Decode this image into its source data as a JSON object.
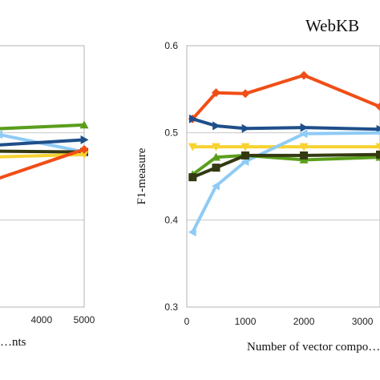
{
  "chart_data": [
    {
      "type": "line",
      "title": "",
      "xlabel": "…nts",
      "ylabel": "",
      "xticks": [
        "4000",
        "5000"
      ],
      "xlim": [
        2650,
        5000
      ],
      "ylim": [
        0.3,
        0.6
      ],
      "grid": true,
      "series": [
        {
          "color": "#5a9e1c",
          "marker": "triangle-up",
          "x": [
            2650,
            5000
          ],
          "y": [
            0.504,
            0.509
          ]
        },
        {
          "color": "#8ecbf5",
          "marker": "triangle-left",
          "x": [
            2650,
            3000,
            5000
          ],
          "y": [
            0.497,
            0.498,
            0.478
          ]
        },
        {
          "color": "#1f4f8a",
          "marker": "triangle-right",
          "x": [
            2650,
            5000
          ],
          "y": [
            0.485,
            0.492
          ]
        },
        {
          "color": "#333a12",
          "marker": "square",
          "x": [
            2650,
            5000
          ],
          "y": [
            0.479,
            0.478
          ]
        },
        {
          "color": "#f7d331",
          "marker": "triangle-down",
          "x": [
            2650,
            5000
          ],
          "y": [
            0.472,
            0.475
          ]
        },
        {
          "color": "#f04e16",
          "marker": "diamond",
          "x": [
            2650,
            5000
          ],
          "y": [
            0.442,
            0.481
          ]
        }
      ]
    },
    {
      "type": "line",
      "title": "WebKB",
      "xlabel": "Number of vector compo…",
      "ylabel": "F1-measure",
      "xticks": [
        "0",
        "1000",
        "2000",
        "3000"
      ],
      "yticks": [
        "0.3",
        "0.4",
        "0.5",
        "0.6"
      ],
      "xlim": [
        0,
        3300
      ],
      "ylim": [
        0.3,
        0.6
      ],
      "grid": true,
      "series": [
        {
          "color": "#f04e16",
          "marker": "diamond",
          "x": [
            100,
            500,
            1000,
            2000,
            3300
          ],
          "y": [
            0.516,
            0.546,
            0.545,
            0.566,
            0.53
          ]
        },
        {
          "color": "#1f4f8a",
          "marker": "triangle-right",
          "x": [
            100,
            500,
            1000,
            2000,
            3300
          ],
          "y": [
            0.516,
            0.508,
            0.505,
            0.506,
            0.504
          ]
        },
        {
          "color": "#f7d331",
          "marker": "triangle-down",
          "x": [
            100,
            500,
            1000,
            2000,
            3300
          ],
          "y": [
            0.484,
            0.484,
            0.484,
            0.484,
            0.484
          ]
        },
        {
          "color": "#8ecbf5",
          "marker": "triangle-left",
          "x": [
            100,
            500,
            1000,
            2000,
            3300
          ],
          "y": [
            0.386,
            0.439,
            0.467,
            0.499,
            0.5
          ]
        },
        {
          "color": "#5a9e1c",
          "marker": "triangle-up",
          "x": [
            100,
            500,
            1000,
            2000,
            3300
          ],
          "y": [
            0.452,
            0.472,
            0.474,
            0.469,
            0.472
          ]
        },
        {
          "color": "#333a12",
          "marker": "square",
          "x": [
            100,
            500,
            1000,
            2000,
            3300
          ],
          "y": [
            0.449,
            0.46,
            0.474,
            0.474,
            0.475
          ]
        }
      ]
    }
  ]
}
